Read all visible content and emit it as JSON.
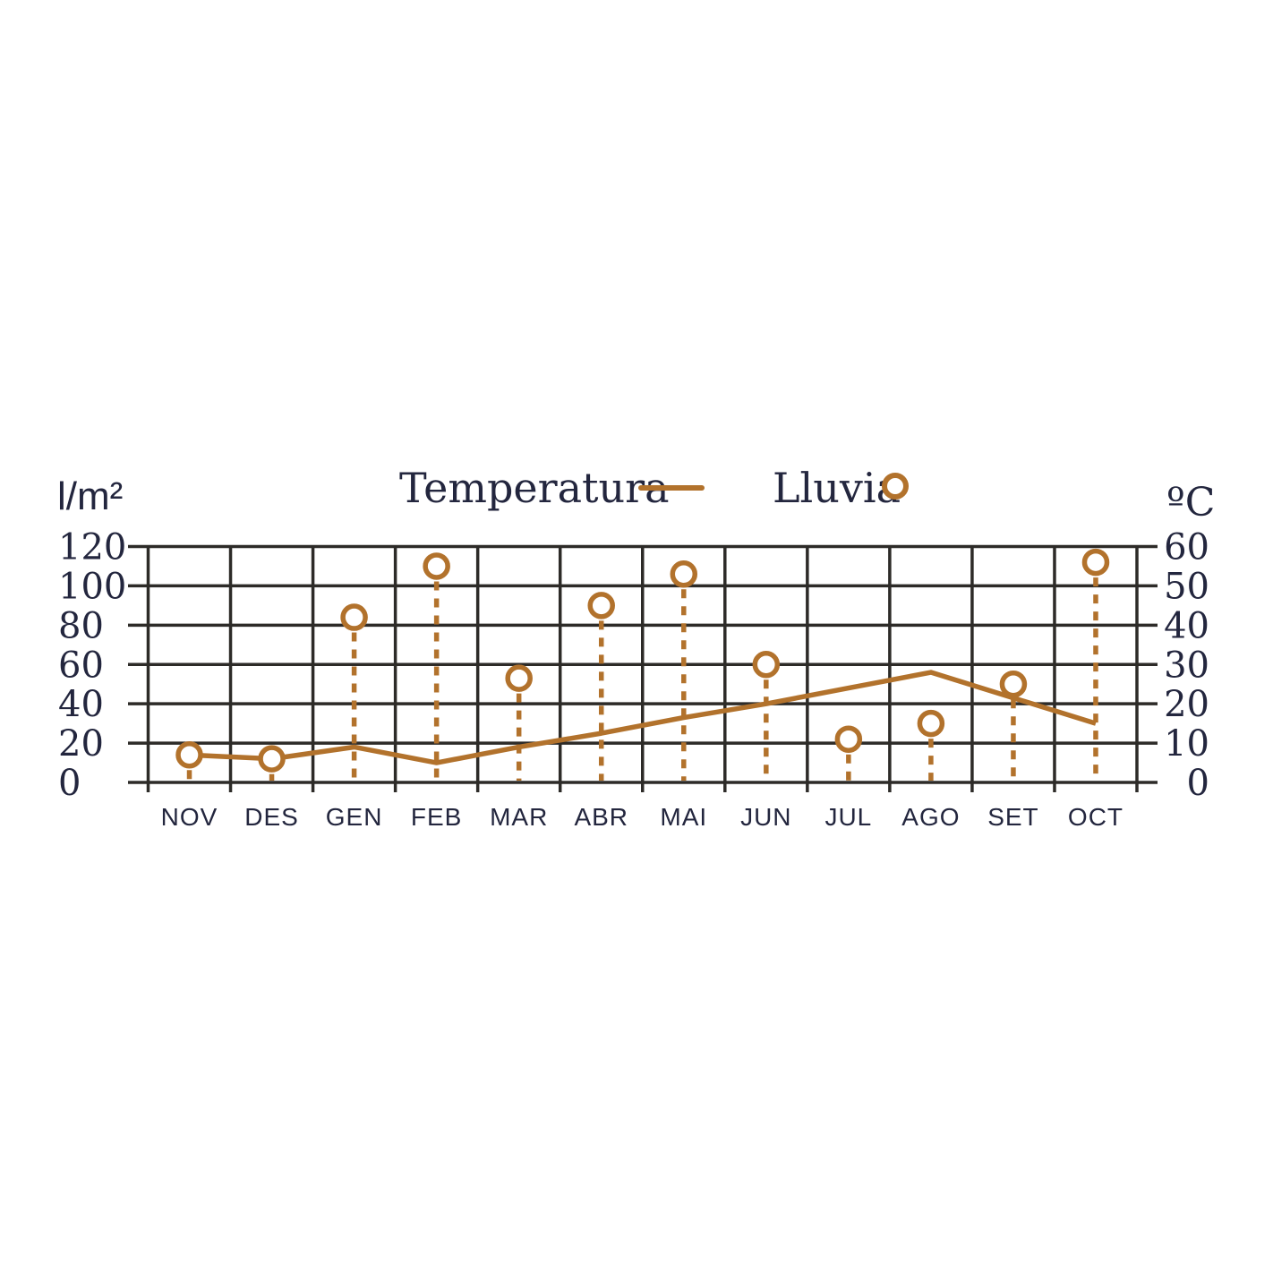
{
  "colors": {
    "accent": "#b2722c",
    "ink": "#23263e",
    "grid": "#2d2b28",
    "background": "#ffffff"
  },
  "chart_data": {
    "type": "line",
    "title": "",
    "categories": [
      "NOV",
      "DES",
      "GEN",
      "FEB",
      "MAR",
      "ABR",
      "MAI",
      "JUN",
      "JUL",
      "AGO",
      "SET",
      "OCT"
    ],
    "series": [
      {
        "name": "Temperatura",
        "type": "line",
        "axis": "right",
        "unit": "ºC",
        "values": [
          7,
          6,
          9,
          5,
          9,
          12.5,
          16.5,
          20,
          24,
          28,
          21.5,
          15
        ]
      },
      {
        "name": "Lluvia",
        "type": "lollipop",
        "axis": "left",
        "unit": "l/m²",
        "marker": "open-circle",
        "stem": "dashed",
        "values": [
          14,
          12,
          84,
          110,
          53,
          90,
          106,
          60,
          22,
          30,
          50,
          112
        ]
      }
    ],
    "left_axis": {
      "label": "l/m²",
      "range": [
        0,
        120
      ],
      "ticks": [
        120,
        100,
        80,
        60,
        40,
        20,
        0
      ]
    },
    "right_axis": {
      "label": "ºC",
      "range": [
        0,
        60
      ],
      "ticks": [
        60,
        50,
        40,
        30,
        20,
        10,
        0
      ]
    },
    "grid": true,
    "legend_position": "top-center"
  }
}
